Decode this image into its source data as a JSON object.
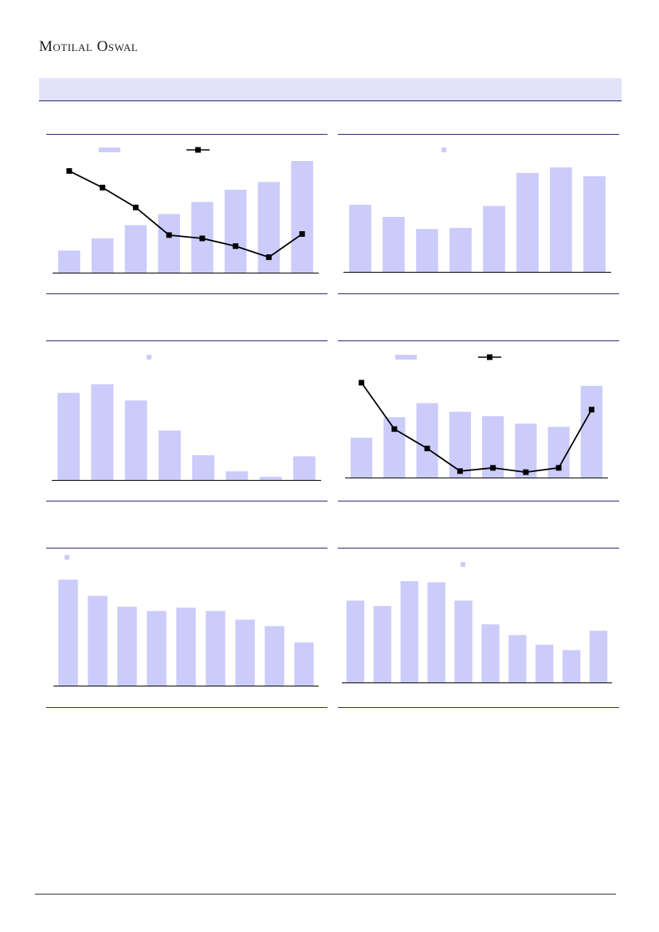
{
  "header": {
    "brand": "Motilal Oswal"
  },
  "colors": {
    "bar": "#ccccfb",
    "line": "#000000",
    "axis": "#000000",
    "rule": "#2a2a7a",
    "band": "#e2e2fb"
  },
  "chart_data": [
    {
      "type": "bar",
      "has_line": true,
      "legend": "two-items-top",
      "values": [
        20,
        31,
        43,
        53,
        64,
        75,
        82,
        101
      ],
      "line_values": [
        92,
        77,
        59,
        34,
        31,
        24,
        14,
        35
      ]
    },
    {
      "type": "bar",
      "has_line": false,
      "legend": "one-item-top",
      "values": [
        61,
        50,
        39,
        40,
        60,
        90,
        95,
        87
      ]
    },
    {
      "type": "bar",
      "has_line": false,
      "legend": "one-item-top",
      "values": [
        81,
        89,
        74,
        46,
        23,
        8,
        3,
        22
      ]
    },
    {
      "type": "bar",
      "has_line": true,
      "legend": "two-items-top",
      "values": [
        37,
        56,
        69,
        61,
        57,
        50,
        47,
        85
      ],
      "line_values": [
        88,
        45,
        27,
        6,
        9,
        5,
        9,
        63
      ]
    },
    {
      "type": "bar",
      "has_line": false,
      "legend": "one-item-top-left",
      "values": [
        98,
        83,
        73,
        69,
        72,
        69,
        61,
        55,
        40
      ]
    },
    {
      "type": "bar",
      "has_line": false,
      "legend": "one-item-top",
      "values": [
        76,
        71,
        94,
        93,
        76,
        54,
        44,
        35,
        30,
        48
      ]
    }
  ]
}
